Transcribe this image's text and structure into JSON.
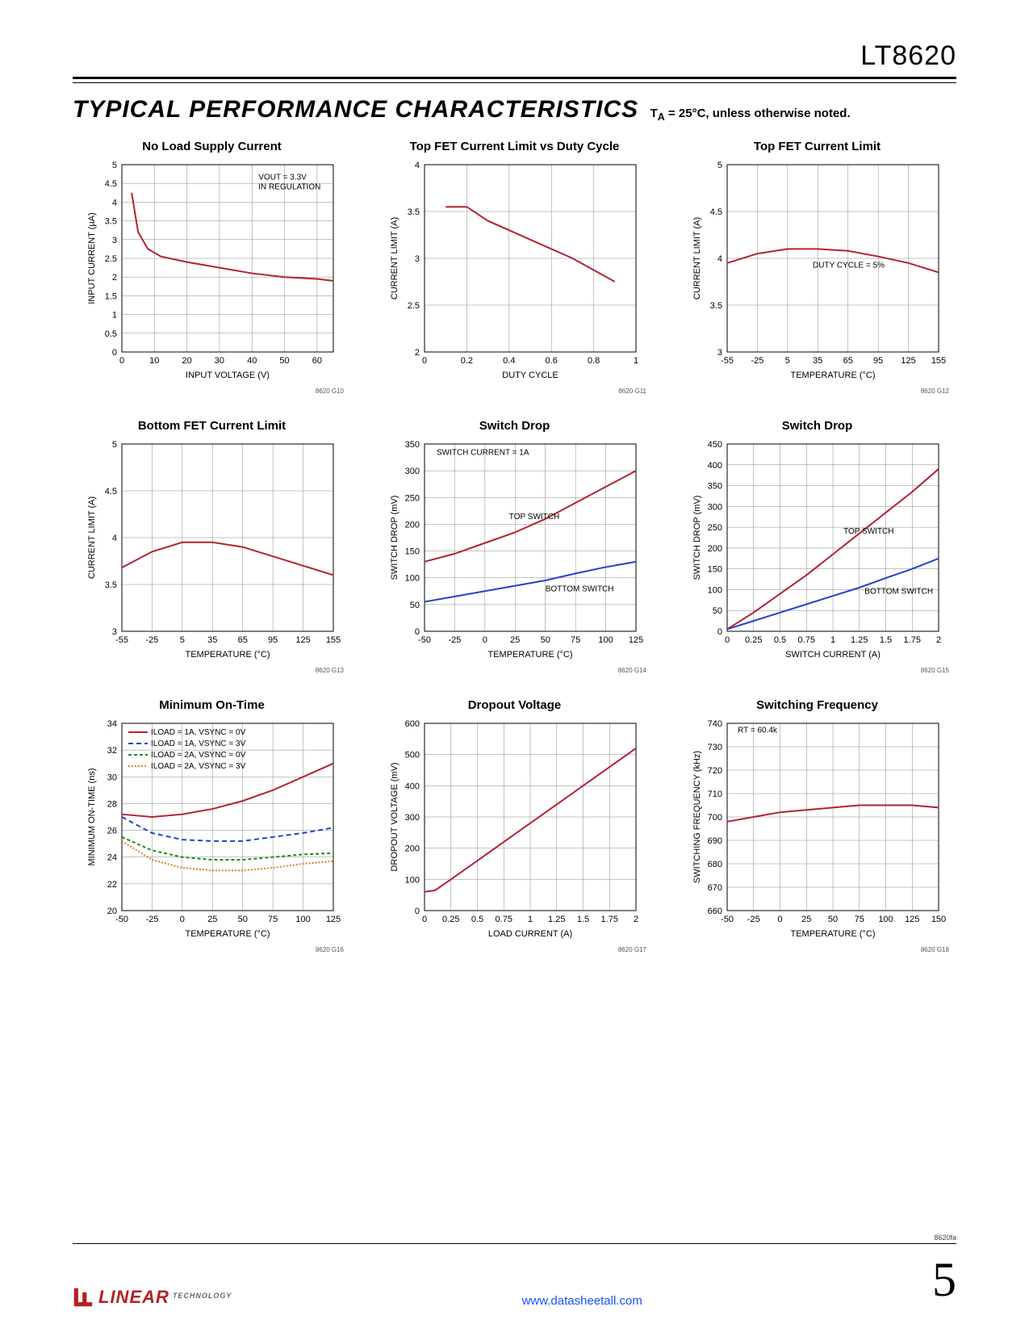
{
  "part_number": "LT8620",
  "section_title": "TYPICAL PERFORMANCE CHARACTERISTICS",
  "subtitle": "T_A = 25°C, unless otherwise noted.",
  "doc_rev": "8620fa",
  "page_number": "5",
  "footer_link": "www.datasheetall.com",
  "logo_text": "LINEAR",
  "logo_sub": "TECHNOLOGY",
  "colors": {
    "series_red": "#b22232",
    "series_blue": "#2244cc",
    "series_green": "#1a8a1a",
    "series_orange": "#d98022",
    "grid": "#888888",
    "axis": "#000000",
    "text": "#000000"
  },
  "charts": [
    {
      "id": "8620 G10",
      "title": "No Load Supply Current",
      "xlabel": "INPUT VOLTAGE (V)",
      "ylabel": "INPUT CURRENT (µA)",
      "annotation": "V_OUT = 3.3V\nIN REGULATION",
      "anno_x": 42,
      "anno_y": 4.6,
      "xlim": [
        0,
        65
      ],
      "xtick_step": 10,
      "ylim": [
        0,
        5.0
      ],
      "ytick_step": 0.5,
      "series": [
        {
          "color_key": "series_red",
          "dash": null,
          "points": [
            [
              3,
              4.25
            ],
            [
              5,
              3.2
            ],
            [
              8,
              2.75
            ],
            [
              12,
              2.55
            ],
            [
              20,
              2.4
            ],
            [
              30,
              2.25
            ],
            [
              40,
              2.1
            ],
            [
              50,
              2.0
            ],
            [
              60,
              1.95
            ],
            [
              65,
              1.9
            ]
          ]
        }
      ]
    },
    {
      "id": "8620 G11",
      "title": "Top FET Current Limit vs Duty Cycle",
      "xlabel": "DUTY CYCLE",
      "ylabel": "CURRENT LIMIT (A)",
      "xlim": [
        0,
        1.0
      ],
      "xtick_step": 0.2,
      "ylim": [
        2.0,
        4.0
      ],
      "ytick_step": 0.5,
      "series": [
        {
          "color_key": "series_red",
          "dash": null,
          "points": [
            [
              0.1,
              3.55
            ],
            [
              0.2,
              3.55
            ],
            [
              0.3,
              3.4
            ],
            [
              0.5,
              3.2
            ],
            [
              0.7,
              3.0
            ],
            [
              0.9,
              2.75
            ]
          ]
        }
      ]
    },
    {
      "id": "8620 G12",
      "title": "Top FET Current Limit",
      "xlabel": "TEMPERATURE (°C)",
      "ylabel": "CURRENT LIMIT (A)",
      "annotation": "DUTY CYCLE = 5%",
      "anno_x": 30,
      "anno_y": 3.9,
      "xlim": [
        -55,
        155
      ],
      "xtick_step": 30,
      "ylim": [
        3.0,
        5.0
      ],
      "ytick_step": 0.5,
      "series": [
        {
          "color_key": "series_red",
          "dash": null,
          "points": [
            [
              -55,
              3.95
            ],
            [
              -25,
              4.05
            ],
            [
              5,
              4.1
            ],
            [
              35,
              4.1
            ],
            [
              65,
              4.08
            ],
            [
              95,
              4.02
            ],
            [
              125,
              3.95
            ],
            [
              155,
              3.85
            ]
          ]
        }
      ]
    },
    {
      "id": "8620 G13",
      "title": "Bottom FET Current Limit",
      "xlabel": "TEMPERATURE (°C)",
      "ylabel": "CURRENT LIMIT (A)",
      "xlim": [
        -55,
        155
      ],
      "xtick_step": 30,
      "ylim": [
        3.0,
        5.0
      ],
      "ytick_step": 0.5,
      "series": [
        {
          "color_key": "series_red",
          "dash": null,
          "points": [
            [
              -55,
              3.68
            ],
            [
              -25,
              3.85
            ],
            [
              5,
              3.95
            ],
            [
              35,
              3.95
            ],
            [
              65,
              3.9
            ],
            [
              95,
              3.8
            ],
            [
              125,
              3.7
            ],
            [
              155,
              3.6
            ]
          ]
        }
      ]
    },
    {
      "id": "8620 G14",
      "title": "Switch Drop",
      "xlabel": "TEMPERATURE (°C)",
      "ylabel": "SWITCH DROP (mV)",
      "annotation": "SWITCH CURRENT = 1A",
      "anno_x": -40,
      "anno_y": 330,
      "series_labels": [
        {
          "text": "TOP SWITCH",
          "x": 20,
          "y": 210
        },
        {
          "text": "BOTTOM SWITCH",
          "x": 50,
          "y": 75
        }
      ],
      "xlim": [
        -50,
        125
      ],
      "xtick_step": 25,
      "ylim": [
        0,
        350
      ],
      "ytick_step": 50,
      "series": [
        {
          "color_key": "series_red",
          "dash": null,
          "points": [
            [
              -50,
              130
            ],
            [
              -25,
              145
            ],
            [
              0,
              165
            ],
            [
              25,
              185
            ],
            [
              50,
              210
            ],
            [
              75,
              240
            ],
            [
              100,
              270
            ],
            [
              125,
              300
            ]
          ]
        },
        {
          "color_key": "series_blue",
          "dash": null,
          "points": [
            [
              -50,
              55
            ],
            [
              -25,
              65
            ],
            [
              0,
              75
            ],
            [
              25,
              85
            ],
            [
              50,
              95
            ],
            [
              75,
              108
            ],
            [
              100,
              120
            ],
            [
              125,
              130
            ]
          ]
        }
      ]
    },
    {
      "id": "8620 G15",
      "title": "Switch Drop",
      "xlabel": "SWITCH CURRENT (A)",
      "ylabel": "SWITCH DROP (mV)",
      "series_labels": [
        {
          "text": "TOP SWITCH",
          "x": 1.1,
          "y": 235
        },
        {
          "text": "BOTTOM SWITCH",
          "x": 1.3,
          "y": 90
        }
      ],
      "xlim": [
        0,
        2
      ],
      "xtick_step": 0.25,
      "ylim": [
        0,
        450
      ],
      "ytick_step": 50,
      "series": [
        {
          "color_key": "series_red",
          "dash": null,
          "points": [
            [
              0,
              5
            ],
            [
              0.25,
              45
            ],
            [
              0.5,
              90
            ],
            [
              0.75,
              135
            ],
            [
              1,
              185
            ],
            [
              1.25,
              235
            ],
            [
              1.5,
              285
            ],
            [
              1.75,
              335
            ],
            [
              2,
              390
            ]
          ]
        },
        {
          "color_key": "series_blue",
          "dash": null,
          "points": [
            [
              0,
              5
            ],
            [
              0.25,
              25
            ],
            [
              0.5,
              45
            ],
            [
              0.75,
              65
            ],
            [
              1,
              85
            ],
            [
              1.25,
              105
            ],
            [
              1.5,
              128
            ],
            [
              1.75,
              150
            ],
            [
              2,
              175
            ]
          ]
        }
      ]
    },
    {
      "id": "8620 G16",
      "title": "Minimum On-Time",
      "xlabel": "TEMPERATURE (°C)",
      "ylabel": "MINIMUM ON-TIME (ns)",
      "legend": [
        {
          "text": "I_LOAD = 1A, V_SYNC = 0V",
          "color_key": "series_red",
          "dash": null
        },
        {
          "text": "I_LOAD = 1A, V_SYNC = 3V",
          "color_key": "series_blue",
          "dash": "6,4"
        },
        {
          "text": "I_LOAD = 2A, V_SYNC = 0V",
          "color_key": "series_green",
          "dash": "4,3"
        },
        {
          "text": "I_LOAD = 2A, V_SYNC = 3V",
          "color_key": "series_orange",
          "dash": "2,2"
        }
      ],
      "xlim": [
        -50,
        125
      ],
      "xtick_step": 25,
      "ylim": [
        20,
        34
      ],
      "ytick_step": 2,
      "series": [
        {
          "color_key": "series_red",
          "dash": null,
          "points": [
            [
              -50,
              27.2
            ],
            [
              -25,
              27.0
            ],
            [
              0,
              27.2
            ],
            [
              25,
              27.6
            ],
            [
              50,
              28.2
            ],
            [
              75,
              29.0
            ],
            [
              100,
              30.0
            ],
            [
              125,
              31.0
            ]
          ]
        },
        {
          "color_key": "series_blue",
          "dash": "6,4",
          "points": [
            [
              -50,
              27.0
            ],
            [
              -25,
              25.8
            ],
            [
              0,
              25.3
            ],
            [
              25,
              25.2
            ],
            [
              50,
              25.2
            ],
            [
              75,
              25.5
            ],
            [
              100,
              25.8
            ],
            [
              125,
              26.2
            ]
          ]
        },
        {
          "color_key": "series_green",
          "dash": "4,3",
          "points": [
            [
              -50,
              25.5
            ],
            [
              -25,
              24.5
            ],
            [
              0,
              24.0
            ],
            [
              25,
              23.8
            ],
            [
              50,
              23.8
            ],
            [
              75,
              24.0
            ],
            [
              100,
              24.2
            ],
            [
              125,
              24.3
            ]
          ]
        },
        {
          "color_key": "series_orange",
          "dash": "2,2",
          "points": [
            [
              -50,
              25.2
            ],
            [
              -25,
              23.8
            ],
            [
              0,
              23.2
            ],
            [
              25,
              23.0
            ],
            [
              50,
              23.0
            ],
            [
              75,
              23.2
            ],
            [
              100,
              23.5
            ],
            [
              125,
              23.7
            ]
          ]
        }
      ]
    },
    {
      "id": "8620 G17",
      "title": "Dropout Voltage",
      "xlabel": "LOAD CURRENT (A)",
      "ylabel": "DROPOUT VOLTAGE (mV)",
      "xlim": [
        0,
        2
      ],
      "xtick_step": 0.25,
      "ylim": [
        0,
        600
      ],
      "ytick_step": 100,
      "series": [
        {
          "color_key": "series_red",
          "dash": null,
          "points": [
            [
              0,
              60
            ],
            [
              0.1,
              65
            ],
            [
              0.25,
              100
            ],
            [
              0.5,
              160
            ],
            [
              0.75,
              220
            ],
            [
              1,
              280
            ],
            [
              1.25,
              340
            ],
            [
              1.5,
              400
            ],
            [
              1.75,
              460
            ],
            [
              2,
              520
            ]
          ]
        }
      ]
    },
    {
      "id": "8620 G18",
      "title": "Switching Frequency",
      "xlabel": "TEMPERATURE (°C)",
      "ylabel": "SWITCHING FREQUENCY (kHz)",
      "annotation": "R_T = 60.4k",
      "anno_x": -40,
      "anno_y": 736,
      "xlim": [
        -50,
        150
      ],
      "xtick_step": 25,
      "ylim": [
        660,
        740
      ],
      "ytick_step": 10,
      "series": [
        {
          "color_key": "series_red",
          "dash": null,
          "points": [
            [
              -50,
              698
            ],
            [
              -25,
              700
            ],
            [
              0,
              702
            ],
            [
              25,
              703
            ],
            [
              50,
              704
            ],
            [
              75,
              705
            ],
            [
              100,
              705
            ],
            [
              125,
              705
            ],
            [
              150,
              704
            ]
          ]
        }
      ]
    }
  ]
}
